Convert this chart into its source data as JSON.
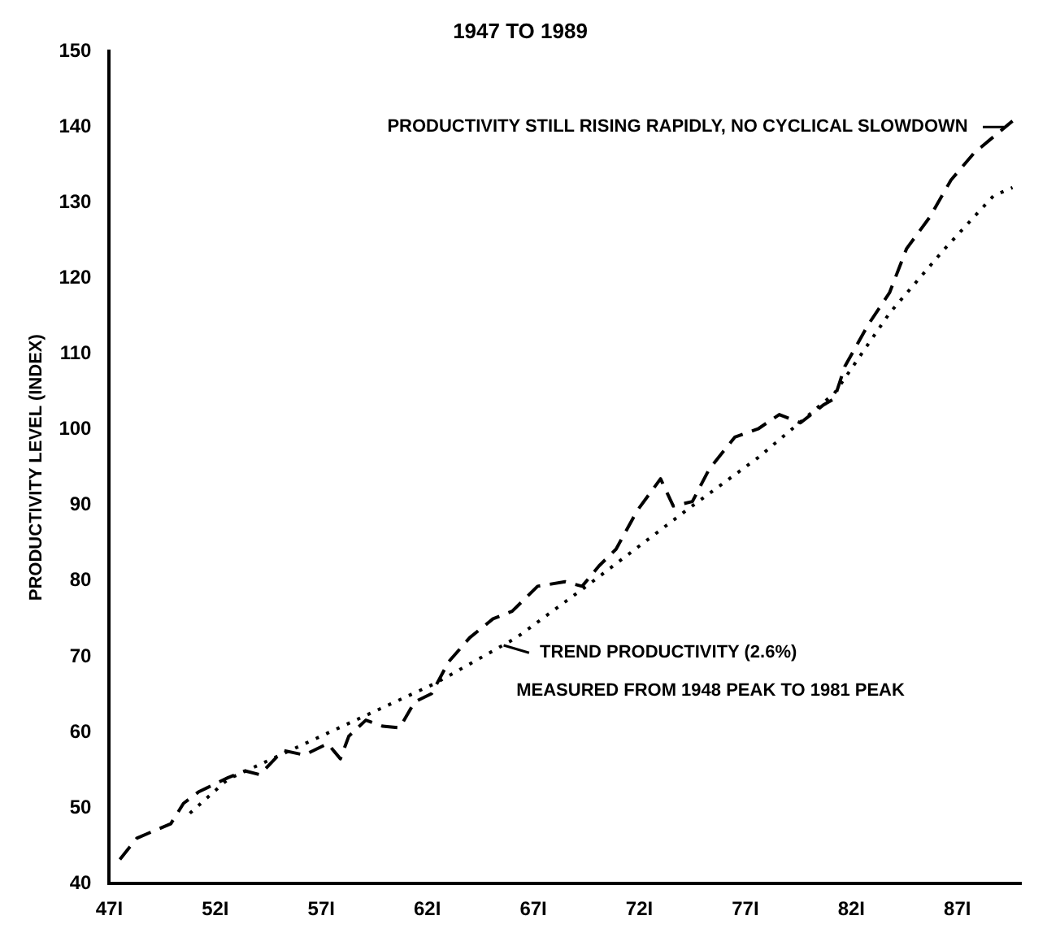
{
  "chart_data": {
    "type": "line",
    "title": "1947 TO 1989",
    "ylabel": "PRODUCTIVITY LEVEL (INDEX)",
    "annotations": [
      "PRODUCTIVITY STILL RISING RAPIDLY, NO CYCLICAL SLOWDOWN",
      "TREND PRODUCTIVITY (2.6%)",
      "MEASURED FROM 1948 PEAK TO 1981 PEAK"
    ],
    "xlim": [
      47,
      90
    ],
    "xticks": [
      {
        "value": 47,
        "label": "47I"
      },
      {
        "value": 52,
        "label": "52I"
      },
      {
        "value": 57,
        "label": "57I"
      },
      {
        "value": 62,
        "label": "62I"
      },
      {
        "value": 67,
        "label": "67I"
      },
      {
        "value": 72,
        "label": "72I"
      },
      {
        "value": 77,
        "label": "77I"
      },
      {
        "value": 82,
        "label": "82I"
      },
      {
        "value": 87,
        "label": "87I"
      }
    ],
    "ylim": [
      40,
      150
    ],
    "yticks": [
      40,
      50,
      60,
      70,
      80,
      90,
      100,
      110,
      120,
      130,
      140,
      150
    ],
    "grid": false,
    "legend": false,
    "marker": "none",
    "series": [
      {
        "color": "#000000",
        "line_style": "dashed",
        "x": [
          47.5,
          48.3,
          49.3,
          49.9,
          50.5,
          51.2,
          52.6,
          53.4,
          54.1,
          55.2,
          56.2,
          57.3,
          57.9,
          58.3,
          59.1,
          59.9,
          60.7,
          61.4,
          62.2,
          63.0,
          64.0,
          65.1,
          66.0,
          67.2,
          68.5,
          69.3,
          70.1,
          70.9,
          71.9,
          73.0,
          73.6,
          74.5,
          75.3,
          76.5,
          77.6,
          78.6,
          79.6,
          80.7,
          81.2,
          81.7,
          82.8,
          83.8,
          84.6,
          85.7,
          86.7,
          87.8,
          89.6
        ],
        "values": [
          43.2,
          46,
          47.2,
          47.9,
          50.6,
          52.1,
          54,
          54.9,
          54.4,
          57.6,
          57,
          58.5,
          56.5,
          59.5,
          61.6,
          60.8,
          60.6,
          64,
          65.1,
          69.3,
          72.5,
          75,
          76,
          79.3,
          79.9,
          79.3,
          82,
          84.2,
          89.3,
          93.5,
          89.9,
          90.5,
          94.8,
          99,
          100.1,
          102,
          100.9,
          103.3,
          104.1,
          108.4,
          113.9,
          118.1,
          123.9,
          128.1,
          133,
          136.6,
          140.8
        ]
      },
      {
        "color": "#000000",
        "line_style": "dotted",
        "x": [
          50.8,
          52.6,
          62.4,
          66.2,
          69.5,
          74.2,
          77.6,
          81.2,
          83.8,
          86.4,
          88.7,
          89.6
        ],
        "values": [
          49.3,
          53.8,
          66.5,
          72.5,
          79.3,
          89.3,
          96.3,
          104.8,
          115.4,
          123.9,
          130.9,
          132
        ]
      }
    ]
  }
}
